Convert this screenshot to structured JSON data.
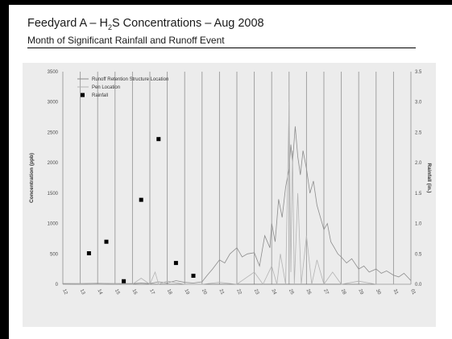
{
  "slide": {
    "title_prefix": "Feedyard A – H",
    "title_sub": "2",
    "title_suffix": "S Concentrations – Aug 2008",
    "subtitle": "Month of Significant Rainfall and Runoff Event"
  },
  "chart_data": {
    "type": "line",
    "x_categories": [
      "12",
      "13",
      "14",
      "15",
      "16",
      "17",
      "18",
      "19",
      "20",
      "21",
      "22",
      "23",
      "24",
      "25",
      "26",
      "27",
      "28",
      "29",
      "30",
      "31",
      "01"
    ],
    "ylabel": "Concentration (ppb)",
    "ylabel_right": "Rainfall (in.)",
    "ylim": [
      0,
      3500
    ],
    "ylim_right": [
      0,
      3.5
    ],
    "y_ticks": [
      0,
      500,
      1000,
      1500,
      2000,
      2500,
      3000,
      3500
    ],
    "y_ticks_right": [
      "0.0",
      "0.5",
      "1.0",
      "1.5",
      "2.0",
      "2.5",
      "3.0",
      "3.5"
    ],
    "grid": "vertical",
    "legend_position": "top-left",
    "series": [
      {
        "name": "Runoff Retention Structure Location",
        "kind": "line",
        "color": "#8c8c8c",
        "x": [
          12.0,
          13.0,
          14.0,
          15.0,
          16.0,
          16.5,
          17.0,
          17.5,
          18.0,
          18.5,
          19.0,
          19.5,
          20.0,
          20.3,
          20.6,
          21.0,
          21.3,
          21.6,
          22.0,
          22.3,
          22.6,
          23.0,
          23.3,
          23.6,
          23.9,
          24.0,
          24.2,
          24.4,
          24.6,
          24.8,
          25.0,
          25.1,
          25.2,
          25.35,
          25.5,
          25.65,
          25.8,
          26.0,
          26.2,
          26.4,
          26.6,
          26.8,
          27.0,
          27.2,
          27.4,
          27.6,
          27.8,
          28.0,
          28.3,
          28.6,
          29.0,
          29.3,
          29.6,
          30.0,
          30.3,
          30.6,
          31.0,
          31.3,
          31.6,
          32.0
        ],
        "y": [
          10,
          10,
          15,
          10,
          10,
          20,
          10,
          40,
          20,
          60,
          30,
          20,
          40,
          150,
          250,
          400,
          350,
          500,
          600,
          450,
          500,
          520,
          300,
          800,
          600,
          1000,
          700,
          1400,
          1100,
          1600,
          1900,
          2300,
          2000,
          2600,
          2100,
          1800,
          2200,
          1900,
          1500,
          1700,
          1300,
          1100,
          900,
          1000,
          700,
          600,
          500,
          450,
          350,
          420,
          250,
          300,
          200,
          250,
          180,
          220,
          150,
          120,
          180,
          60
        ]
      },
      {
        "name": "Pen Location",
        "kind": "line",
        "color": "#b3b3b3",
        "x": [
          12.0,
          13.0,
          14.0,
          15.0,
          16.0,
          16.5,
          17.0,
          17.3,
          17.5,
          18.0,
          19.0,
          20.0,
          21.0,
          22.0,
          23.0,
          23.5,
          24.0,
          24.3,
          24.5,
          24.8,
          25.0,
          25.1,
          25.2,
          25.3,
          25.5,
          25.7,
          26.0,
          26.3,
          26.6,
          27.0,
          27.5,
          28.0,
          29.0,
          30.0,
          31.0,
          32.0
        ],
        "y": [
          0,
          5,
          0,
          5,
          0,
          100,
          0,
          200,
          0,
          50,
          0,
          0,
          30,
          0,
          200,
          0,
          300,
          0,
          500,
          0,
          3000,
          200,
          2200,
          0,
          1500,
          0,
          800,
          0,
          400,
          0,
          200,
          0,
          50,
          0,
          0,
          0
        ]
      },
      {
        "name": "Rainfall",
        "kind": "scatter",
        "axis": "right",
        "color": "#000000",
        "x": [
          13.5,
          14.5,
          15.5,
          16.5,
          17.5,
          18.5,
          19.5
        ],
        "y": [
          0.51,
          0.7,
          0.05,
          1.39,
          2.39,
          0.35,
          0.14
        ]
      }
    ]
  }
}
